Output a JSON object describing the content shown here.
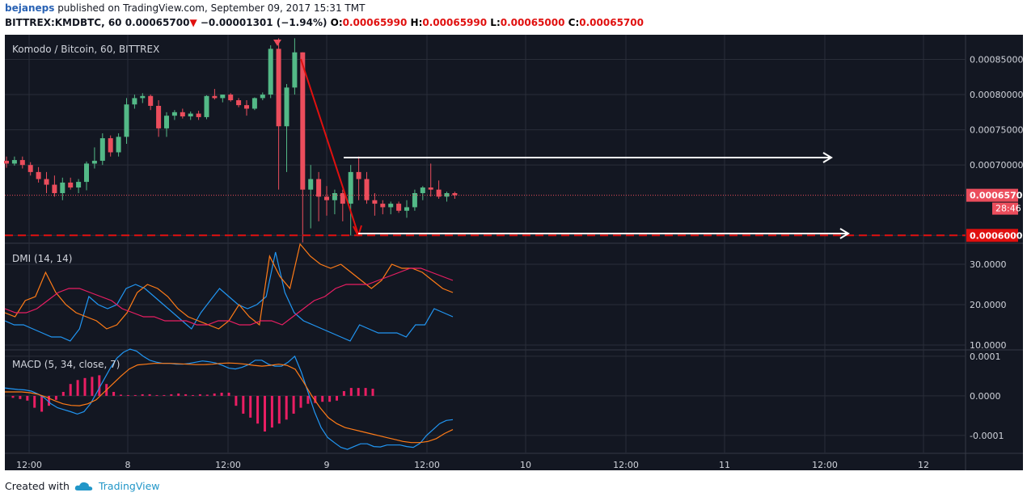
{
  "header": {
    "author": "bejaneps",
    "published_text": "published on TradingView.com, September 09, 2017 15:31 TMT",
    "symbol_line": "BITTREX:KMDBTC, 60",
    "last": "0.00065700",
    "change": "−0.00001301 (−1.94%)",
    "o_label": "O:",
    "o": "0.00065990",
    "h_label": "H:",
    "h": "0.00065990",
    "l_label": "L:",
    "l": "0.00065000",
    "c_label": "C:",
    "c": "0.00065700"
  },
  "footer": {
    "created_with": "Created with",
    "brand": "TradingView"
  },
  "colors": {
    "bg": "#131722",
    "grid": "#2a2e39",
    "up": "#53b987",
    "down": "#eb4d5c",
    "dmi_plus": "#2196f3",
    "dmi_minus": "#ff7b17",
    "adx": "#e91e63",
    "macd": "#2196f3",
    "signal": "#ff7b17",
    "hist": "#e91e63"
  },
  "chart_data": [
    {
      "type": "candlestick",
      "title": "Komodo / Bitcoin, 60, BITTREX",
      "y_ticks": [
        "0.00085000",
        "0.00080000",
        "0.00075000",
        "0.00070000",
        "0.00060000"
      ],
      "ylim": [
        0.00059,
        0.000885
      ],
      "x_ticks": [
        "12:00",
        "8",
        "12:00",
        "9",
        "12:00",
        "10",
        "12:00",
        "11",
        "12:00",
        "12"
      ],
      "last_price_label": "0.00065700",
      "countdown_label": "28:46",
      "support_label": "0.00060000",
      "support_level": 0.0006,
      "candles": [
        [
          0.000706,
          0.000712,
          0.000696,
          0.000702
        ],
        [
          0.000702,
          0.000712,
          0.000699,
          0.000707
        ],
        [
          0.000707,
          0.000712,
          0.000695,
          0.0007
        ],
        [
          0.0007,
          0.000704,
          0.000685,
          0.00069
        ],
        [
          0.00069,
          0.000697,
          0.000675,
          0.00068
        ],
        [
          0.00068,
          0.00069,
          0.00066,
          0.000672
        ],
        [
          0.000672,
          0.000685,
          0.000655,
          0.00066
        ],
        [
          0.00066,
          0.000682,
          0.00065,
          0.000675
        ],
        [
          0.000675,
          0.000682,
          0.000665,
          0.000668
        ],
        [
          0.000668,
          0.00068,
          0.00066,
          0.000676
        ],
        [
          0.000676,
          0.000705,
          0.000664,
          0.000702
        ],
        [
          0.000702,
          0.000725,
          0.000695,
          0.000706
        ],
        [
          0.000706,
          0.000745,
          0.0007,
          0.000738
        ],
        [
          0.000738,
          0.000742,
          0.000712,
          0.000718
        ],
        [
          0.000718,
          0.000745,
          0.000712,
          0.00074
        ],
        [
          0.00074,
          0.000795,
          0.00073,
          0.000786
        ],
        [
          0.000786,
          0.0008,
          0.00078,
          0.000795
        ],
        [
          0.000795,
          0.000802,
          0.000788,
          0.000798
        ],
        [
          0.000798,
          0.0008,
          0.000778,
          0.000784
        ],
        [
          0.000784,
          0.000792,
          0.00074,
          0.000752
        ],
        [
          0.000752,
          0.000775,
          0.00074,
          0.00077
        ],
        [
          0.00077,
          0.000778,
          0.000764,
          0.000775
        ],
        [
          0.000775,
          0.00078,
          0.000766,
          0.000769
        ],
        [
          0.000769,
          0.000776,
          0.000764,
          0.000773
        ],
        [
          0.000773,
          0.000777,
          0.000764,
          0.000768
        ],
        [
          0.000768,
          0.000799,
          0.000765,
          0.000798
        ],
        [
          0.000798,
          0.000808,
          0.000793,
          0.000795
        ],
        [
          0.000795,
          0.0008,
          0.000789,
          0.0008
        ],
        [
          0.0008,
          0.000802,
          0.00079,
          0.000792
        ],
        [
          0.000792,
          0.000795,
          0.000782,
          0.000785
        ],
        [
          0.000785,
          0.000792,
          0.00077,
          0.00078
        ],
        [
          0.00078,
          0.000796,
          0.000778,
          0.000795
        ],
        [
          0.000795,
          0.000803,
          0.000792,
          0.0008
        ],
        [
          0.0008,
          0.00087,
          0.000795,
          0.000865
        ],
        [
          0.000865,
          0.00088,
          0.000665,
          0.000755
        ],
        [
          0.000755,
          0.000815,
          0.00069,
          0.00081
        ],
        [
          0.00081,
          0.00088,
          0.0008,
          0.00086
        ],
        [
          0.00086,
          0.00086,
          0.00059,
          0.000665
        ],
        [
          0.000665,
          0.0007,
          0.00061,
          0.00068
        ],
        [
          0.00068,
          0.00069,
          0.00062,
          0.000655
        ],
        [
          0.000655,
          0.00067,
          0.000628,
          0.00065
        ],
        [
          0.00065,
          0.000665,
          0.00063,
          0.00066
        ],
        [
          0.00066,
          0.000665,
          0.00062,
          0.000645
        ],
        [
          0.000645,
          0.0007,
          0.0006,
          0.00069
        ],
        [
          0.00069,
          0.000712,
          0.00065,
          0.00068
        ],
        [
          0.00068,
          0.00069,
          0.000645,
          0.00065
        ],
        [
          0.00065,
          0.00066,
          0.000628,
          0.000645
        ],
        [
          0.000645,
          0.00065,
          0.00063,
          0.00064
        ],
        [
          0.00064,
          0.000648,
          0.00063,
          0.000645
        ],
        [
          0.000645,
          0.000648,
          0.000632,
          0.000635
        ],
        [
          0.000635,
          0.00065,
          0.000625,
          0.00064
        ],
        [
          0.00064,
          0.000665,
          0.000635,
          0.00066
        ],
        [
          0.00066,
          0.00067,
          0.00065,
          0.000668
        ],
        [
          0.000668,
          0.000702,
          0.000655,
          0.000665
        ],
        [
          0.000665,
          0.000678,
          0.000652,
          0.000655
        ],
        [
          0.000655,
          0.000662,
          0.000648,
          0.00066
        ],
        [
          0.00066,
          0.000662,
          0.000652,
          0.000657
        ]
      ]
    },
    {
      "type": "line",
      "title": "DMI (14, 14)",
      "y_ticks": [
        "30.0000",
        "20.0000",
        "10.0000"
      ],
      "ylim": [
        9,
        35
      ],
      "series": [
        {
          "values": [
            16,
            15,
            15,
            14,
            13,
            12,
            12,
            11,
            14,
            22,
            20,
            19,
            20,
            24,
            25,
            24,
            22,
            20,
            18,
            16,
            14,
            18,
            21,
            24,
            22,
            20,
            19,
            20,
            22,
            33,
            23,
            18,
            16,
            15,
            14,
            13,
            12,
            11,
            15,
            14,
            13,
            13,
            13,
            12,
            15,
            15,
            19,
            18,
            17
          ]
        },
        {
          "values": [
            18,
            17,
            21,
            22,
            28,
            23,
            20,
            18,
            17,
            16,
            14,
            15,
            18,
            23,
            25,
            24,
            22,
            19,
            17,
            16,
            15,
            14,
            16,
            20,
            17,
            15,
            32,
            27,
            24,
            35,
            32,
            30,
            29,
            30,
            28,
            26,
            24,
            26,
            30,
            29,
            29,
            28,
            26,
            24,
            23
          ]
        },
        {
          "values": [
            19,
            18,
            18,
            19,
            21,
            23,
            24,
            24,
            23,
            22,
            21,
            19,
            18,
            17,
            17,
            16,
            16,
            16,
            15,
            15,
            16,
            16,
            15,
            15,
            16,
            16,
            15,
            17,
            19,
            21,
            22,
            24,
            25,
            25,
            25,
            26,
            27,
            28,
            29,
            29,
            28,
            27,
            26
          ]
        }
      ]
    },
    {
      "type": "line+bar",
      "title": "MACD (5, 34, close, 7)",
      "y_ticks": [
        "0.0001",
        "0.0000",
        "-0.0001"
      ],
      "ylim": [
        -0.000143,
        0.000114
      ],
      "series": [
        {
          "values": [
            2e-05,
            1.8e-05,
            1.6e-05,
            1.5e-05,
            1.2e-05,
            5e-06,
            -5e-06,
            -2e-05,
            -3e-05,
            -3.5e-05,
            -4e-05,
            -4.6e-05,
            -4e-05,
            -2e-05,
            1e-05,
            4e-05,
            7e-05,
            9.5e-05,
            0.00011,
            0.000118,
            0.000113,
            0.0001,
            9e-05,
            8.5e-05,
            8.2e-05,
            8.2e-05,
            8e-05,
            8e-05,
            8.2e-05,
            8.5e-05,
            8.8e-05,
            8.6e-05,
            8.3e-05,
            7.7e-05,
            7e-05,
            6.8e-05,
            7.2e-05,
            7.9e-05,
            9e-05,
            9e-05,
            8e-05,
            7.5e-05,
            7.5e-05,
            8.5e-05,
            0.0001,
            6e-05,
            1e-05,
            -4e-05,
            -8e-05,
            -0.000105,
            -0.000118,
            -0.00013,
            -0.000135,
            -0.000128,
            -0.000121,
            -0.000121,
            -0.000128,
            -0.000129,
            -0.000124,
            -0.000124,
            -0.000124,
            -0.000128,
            -0.00013,
            -0.00012,
            -0.0001,
            -8.5e-05,
            -7e-05,
            -6.2e-05,
            -6e-05
          ]
        },
        {
          "values": [
            1e-05,
            1e-05,
            1e-05,
            8e-06,
            4e-06,
            -3e-06,
            -1.2e-05,
            -2e-05,
            -2.4e-05,
            -2.5e-05,
            -2e-05,
            -1e-05,
            1e-05,
            3e-05,
            5e-05,
            6.8e-05,
            7.8e-05,
            8e-05,
            8.2e-05,
            8.2e-05,
            8.2e-05,
            8.1e-05,
            8e-05,
            7.9e-05,
            7.9e-05,
            8e-05,
            8.2e-05,
            8.3e-05,
            8.2e-05,
            8e-05,
            7.7e-05,
            7.5e-05,
            7.7e-05,
            8e-05,
            7.7e-05,
            6.7e-05,
            3.5e-05,
            0.0,
            -3e-05,
            -5.5e-05,
            -7e-05,
            -8e-05,
            -8.5e-05,
            -9e-05,
            -9.5e-05,
            -0.0001,
            -0.000105,
            -0.00011,
            -0.000115,
            -0.000118,
            -0.000118,
            -0.000115,
            -0.000108,
            -9.5e-05,
            -8.5e-05
          ]
        },
        {
          "values": [
            -5e-06,
            -8e-06,
            -1.2e-05,
            -3e-05,
            -4e-05,
            -2.5e-05,
            -1e-05,
            1e-05,
            3e-05,
            4e-05,
            4.5e-05,
            4.8e-05,
            5.2e-05,
            3e-05,
            1e-05,
            3e-06,
            2e-06,
            2e-06,
            4e-06,
            4e-06,
            2e-06,
            2e-06,
            4e-06,
            6e-06,
            4e-06,
            2e-06,
            4e-06,
            3e-06,
            6e-06,
            8e-06,
            8e-06,
            -2.5e-05,
            -4.5e-05,
            -5.5e-05,
            -7e-05,
            -9e-05,
            -8e-05,
            -7e-05,
            -6e-05,
            -4.5e-05,
            -3e-05,
            -2e-05,
            -1.8e-05,
            -1.5e-05,
            -1.5e-05,
            -1.2e-05,
            1.2e-05,
            2e-05,
            2e-05,
            2e-05,
            1.8e-05
          ]
        }
      ]
    }
  ]
}
